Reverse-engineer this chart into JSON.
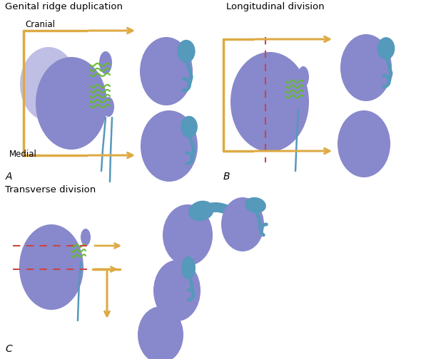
{
  "bg": "#ffffff",
  "tc": "#8888cc",
  "tcl": "#aaaadd",
  "ec": "#5599bb",
  "gc": "#66bb33",
  "ac": "#ddaa44",
  "dc": "#cc4444",
  "sA_title": "Genital ridge duplication",
  "sB_title": "Longitudinal division",
  "sC_title": "Transverse division",
  "cranial": "Cranial",
  "medial": "Medial",
  "lA": "A",
  "lB": "B",
  "lC": "C"
}
